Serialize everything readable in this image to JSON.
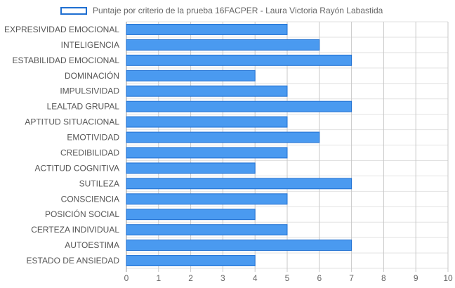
{
  "chart_data": {
    "type": "bar",
    "orientation": "horizontal",
    "title": "",
    "xlabel": "",
    "ylabel": "",
    "legend_position": "top",
    "grid": true,
    "xlim": [
      0,
      10
    ],
    "x_ticks": [
      "0",
      "1",
      "2",
      "3",
      "4",
      "5",
      "6",
      "7",
      "8",
      "9",
      "10"
    ],
    "categories": [
      "EXPRESIVIDAD EMOCIONAL",
      "INTELIGENCIA",
      "ESTABILIDAD EMOCIONAL",
      "DOMINACIÓN",
      "IMPULSIVIDAD",
      "LEALTAD GRUPAL",
      "APTITUD SITUACIONAL",
      "EMOTIVIDAD",
      "CREDIBILIDAD",
      "ACTITUD COGNITIVA",
      "SUTILEZA",
      "CONSCIENCIA",
      "POSICIÓN SOCIAL",
      "CERTEZA INDIVIDUAL",
      "AUTOESTIMA",
      "ESTADO DE ANSIEDAD"
    ],
    "series": [
      {
        "name": "Puntaje por criterio de la prueba 16FACPER - Laura Victoria Rayón Labastida",
        "values": [
          5,
          6,
          7,
          4,
          5,
          7,
          5,
          6,
          5,
          4,
          7,
          5,
          4,
          5,
          7,
          4
        ],
        "color": "#4a9af0",
        "border_color": "#1f6fd1"
      }
    ]
  }
}
